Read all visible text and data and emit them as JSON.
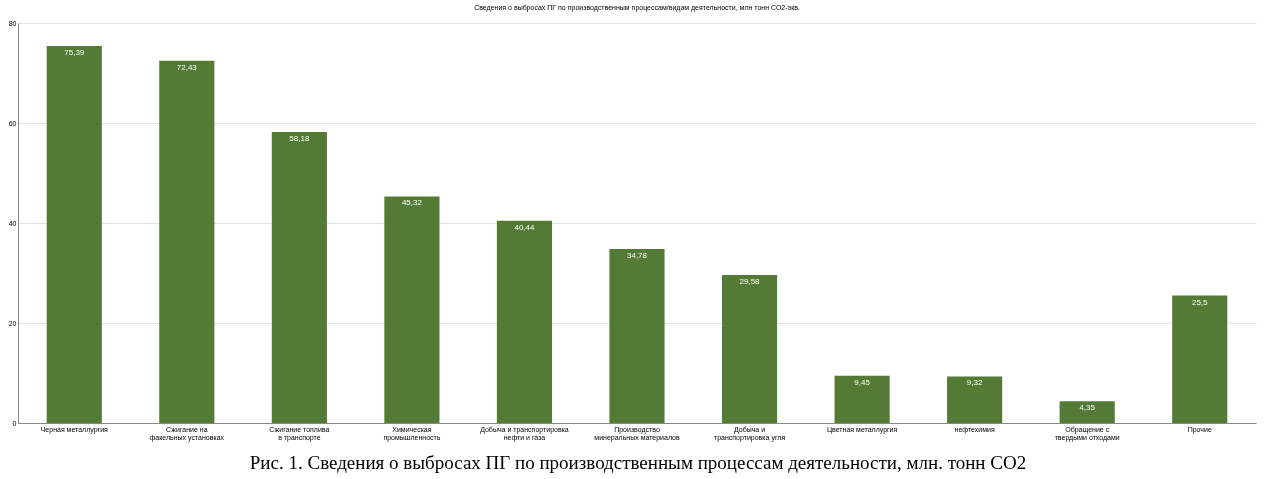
{
  "chart_data": {
    "type": "bar",
    "title": "Сведения о выбросах ПГ по производственным процессам/видам деятельности, млн тонн СО2-экв.",
    "categories": [
      "Черная металлургия",
      "Сжигание на факельных установках",
      "Сжигание топлива в транспорте",
      "Химическая промышленность",
      "Добыча и транспортировка нефти и газа",
      "Производство минеральных материалов",
      "Добыча и транспортировка угля",
      "Цветная металлургия",
      "нефтехимия",
      "Обращение с твердыми отходами",
      "Прочие"
    ],
    "values": [
      75.39,
      72.43,
      58.18,
      45.32,
      40.44,
      34.78,
      29.58,
      9.45,
      9.32,
      4.35,
      25.5
    ],
    "value_labels": [
      "75,39",
      "72,43",
      "58,18",
      "45,32",
      "40,44",
      "34,78",
      "29,58",
      "9,45",
      "9,32",
      "4,35",
      "25,5"
    ],
    "color": "#537b35",
    "ylim": [
      0,
      80
    ],
    "yticks": [
      0,
      20,
      40,
      60,
      80
    ],
    "grid": "y",
    "annotations": [
      "Рис. 1. Сведения о выбросах ПГ по производственным процессам деятельности, млн. тонн СО2"
    ]
  }
}
